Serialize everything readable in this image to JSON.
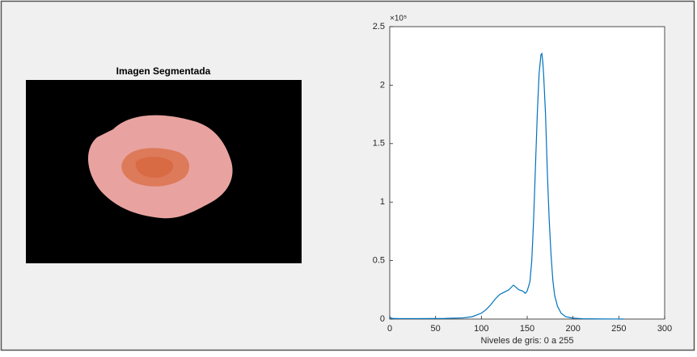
{
  "image_panel": {
    "title": "Imagen Segmentada"
  },
  "chart_data": {
    "type": "line",
    "x_label": "Niveles de gris: 0 a 255",
    "y_exponent": "×10⁵",
    "x": [
      0,
      1,
      3,
      10,
      30,
      60,
      80,
      90,
      100,
      105,
      110,
      115,
      120,
      125,
      130,
      135,
      138,
      141,
      145,
      148,
      150,
      153,
      155,
      157,
      159,
      161,
      163,
      165,
      166,
      167,
      168,
      170,
      172,
      174,
      176,
      178,
      180,
      183,
      187,
      192,
      200,
      210,
      230,
      255
    ],
    "series": [
      {
        "color": "#0072bd",
        "values": [
          0.02,
          0.01,
          0.005,
          0.004,
          0.004,
          0.005,
          0.01,
          0.02,
          0.05,
          0.08,
          0.12,
          0.17,
          0.21,
          0.23,
          0.25,
          0.29,
          0.27,
          0.25,
          0.24,
          0.22,
          0.24,
          0.32,
          0.5,
          0.85,
          1.3,
          1.75,
          2.1,
          2.26,
          2.27,
          2.2,
          2.08,
          1.75,
          1.25,
          0.85,
          0.55,
          0.33,
          0.2,
          0.11,
          0.05,
          0.02,
          0.008,
          0.003,
          0.001,
          0
        ]
      }
    ],
    "xlim": [
      0,
      300
    ],
    "xticks": [
      0,
      50,
      100,
      150,
      200,
      250,
      300
    ],
    "ylim": [
      0,
      2.5
    ],
    "yticks": [
      0,
      0.5,
      1,
      1.5,
      2,
      2.5
    ]
  }
}
